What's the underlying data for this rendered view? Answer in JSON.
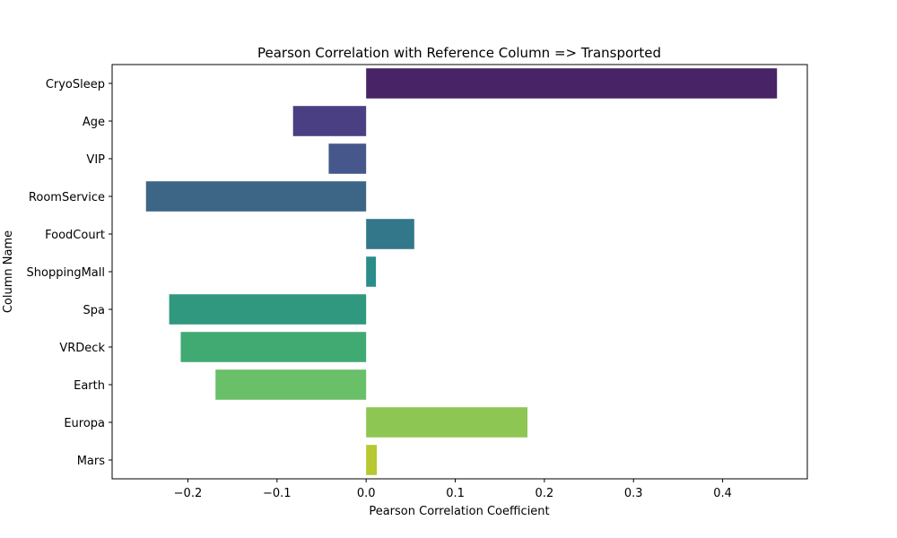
{
  "chart_data": {
    "type": "bar",
    "orientation": "horizontal",
    "title": "Pearson Correlation with Reference Column => Transported",
    "xlabel": "Pearson Correlation Coefficient",
    "ylabel": "Column Name",
    "xlim": [
      -0.285,
      0.495
    ],
    "xticks": [
      {
        "value": -0.2,
        "label": "−0.2"
      },
      {
        "value": -0.1,
        "label": "−0.1"
      },
      {
        "value": 0.0,
        "label": "0.0"
      },
      {
        "value": 0.1,
        "label": "0.1"
      },
      {
        "value": 0.2,
        "label": "0.2"
      },
      {
        "value": 0.3,
        "label": "0.3"
      },
      {
        "value": 0.4,
        "label": "0.4"
      }
    ],
    "categories": [
      "CryoSleep",
      "Age",
      "VIP",
      "RoomService",
      "FoodCourt",
      "ShoppingMall",
      "Spa",
      "VRDeck",
      "Earth",
      "Europa",
      "Mars"
    ],
    "values": [
      0.461,
      -0.082,
      -0.042,
      -0.247,
      0.054,
      0.011,
      -0.221,
      -0.208,
      -0.169,
      0.181,
      0.012
    ],
    "colors": [
      "#482466",
      "#4a3f83",
      "#46588b",
      "#3d6686",
      "#33788a",
      "#2a8d89",
      "#30987e",
      "#41aa72",
      "#6abf69",
      "#8ec654",
      "#b7c830"
    ],
    "grid": false,
    "legend": "none"
  }
}
